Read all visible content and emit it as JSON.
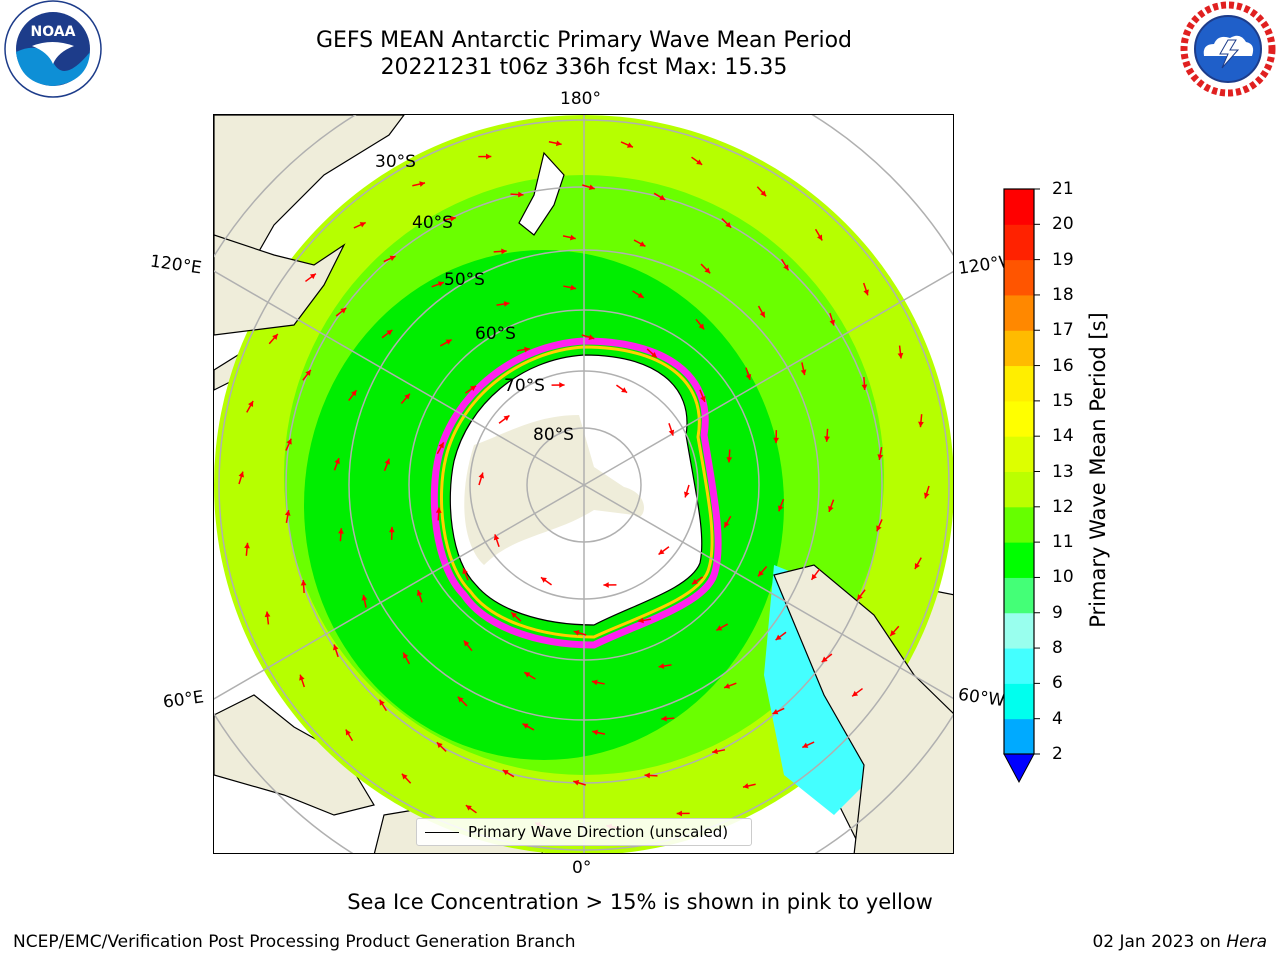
{
  "header": {
    "title_line1": "GEFS MEAN Antarctic Primary Wave Mean Period",
    "title_line2": "20221231 t06z 336h fcst   Max: 15.35"
  },
  "logos": {
    "noaa_text": "NOAA"
  },
  "map": {
    "projection": "south-polar-stereographic",
    "longitude_labels": {
      "top": "180°",
      "bottom": "0°",
      "left_upper": "120°E",
      "right_upper": "120°W",
      "left_lower": "60°E",
      "right_lower": "60°W"
    },
    "latitude_labels": [
      "30°S",
      "40°S",
      "50°S",
      "60°S",
      "70°S",
      "80°S"
    ],
    "field_colors": {
      "ocean_main": "#b6ff00",
      "ocean_mid": "#6aff00",
      "ocean_inner": "#00ee00",
      "cyan_patch": "#44ffff",
      "land": "#efedda",
      "ice_edge": "#ff22ee",
      "arrow": "#ff0000",
      "graticule": "#b0b0b0"
    }
  },
  "legend": {
    "label": "Primary Wave Direction (unscaled)"
  },
  "colorbar": {
    "title": "Primary Wave Mean Period [s]",
    "ticks": [
      "2",
      "4",
      "6",
      "8",
      "9",
      "10",
      "11",
      "12",
      "13",
      "14",
      "15",
      "16",
      "17",
      "18",
      "19",
      "20",
      "21"
    ],
    "colors": [
      "#0044ff",
      "#00aaff",
      "#00ffee",
      "#44ffff",
      "#99ffee",
      "#44ff77",
      "#00ff00",
      "#66ff00",
      "#bbff00",
      "#ddff00",
      "#ffff00",
      "#ffee00",
      "#ffbb00",
      "#ff8800",
      "#ff5500",
      "#ff2200",
      "#ff0000"
    ],
    "extend_color": "#0000ff"
  },
  "footer": {
    "note": "Sea Ice Concentration > 15% is shown in pink to yellow",
    "producer": "NCEP/EMC/Verification Post Processing Product Generation Branch",
    "date": "02 Jan 2023 on ",
    "machine": "Hera"
  }
}
